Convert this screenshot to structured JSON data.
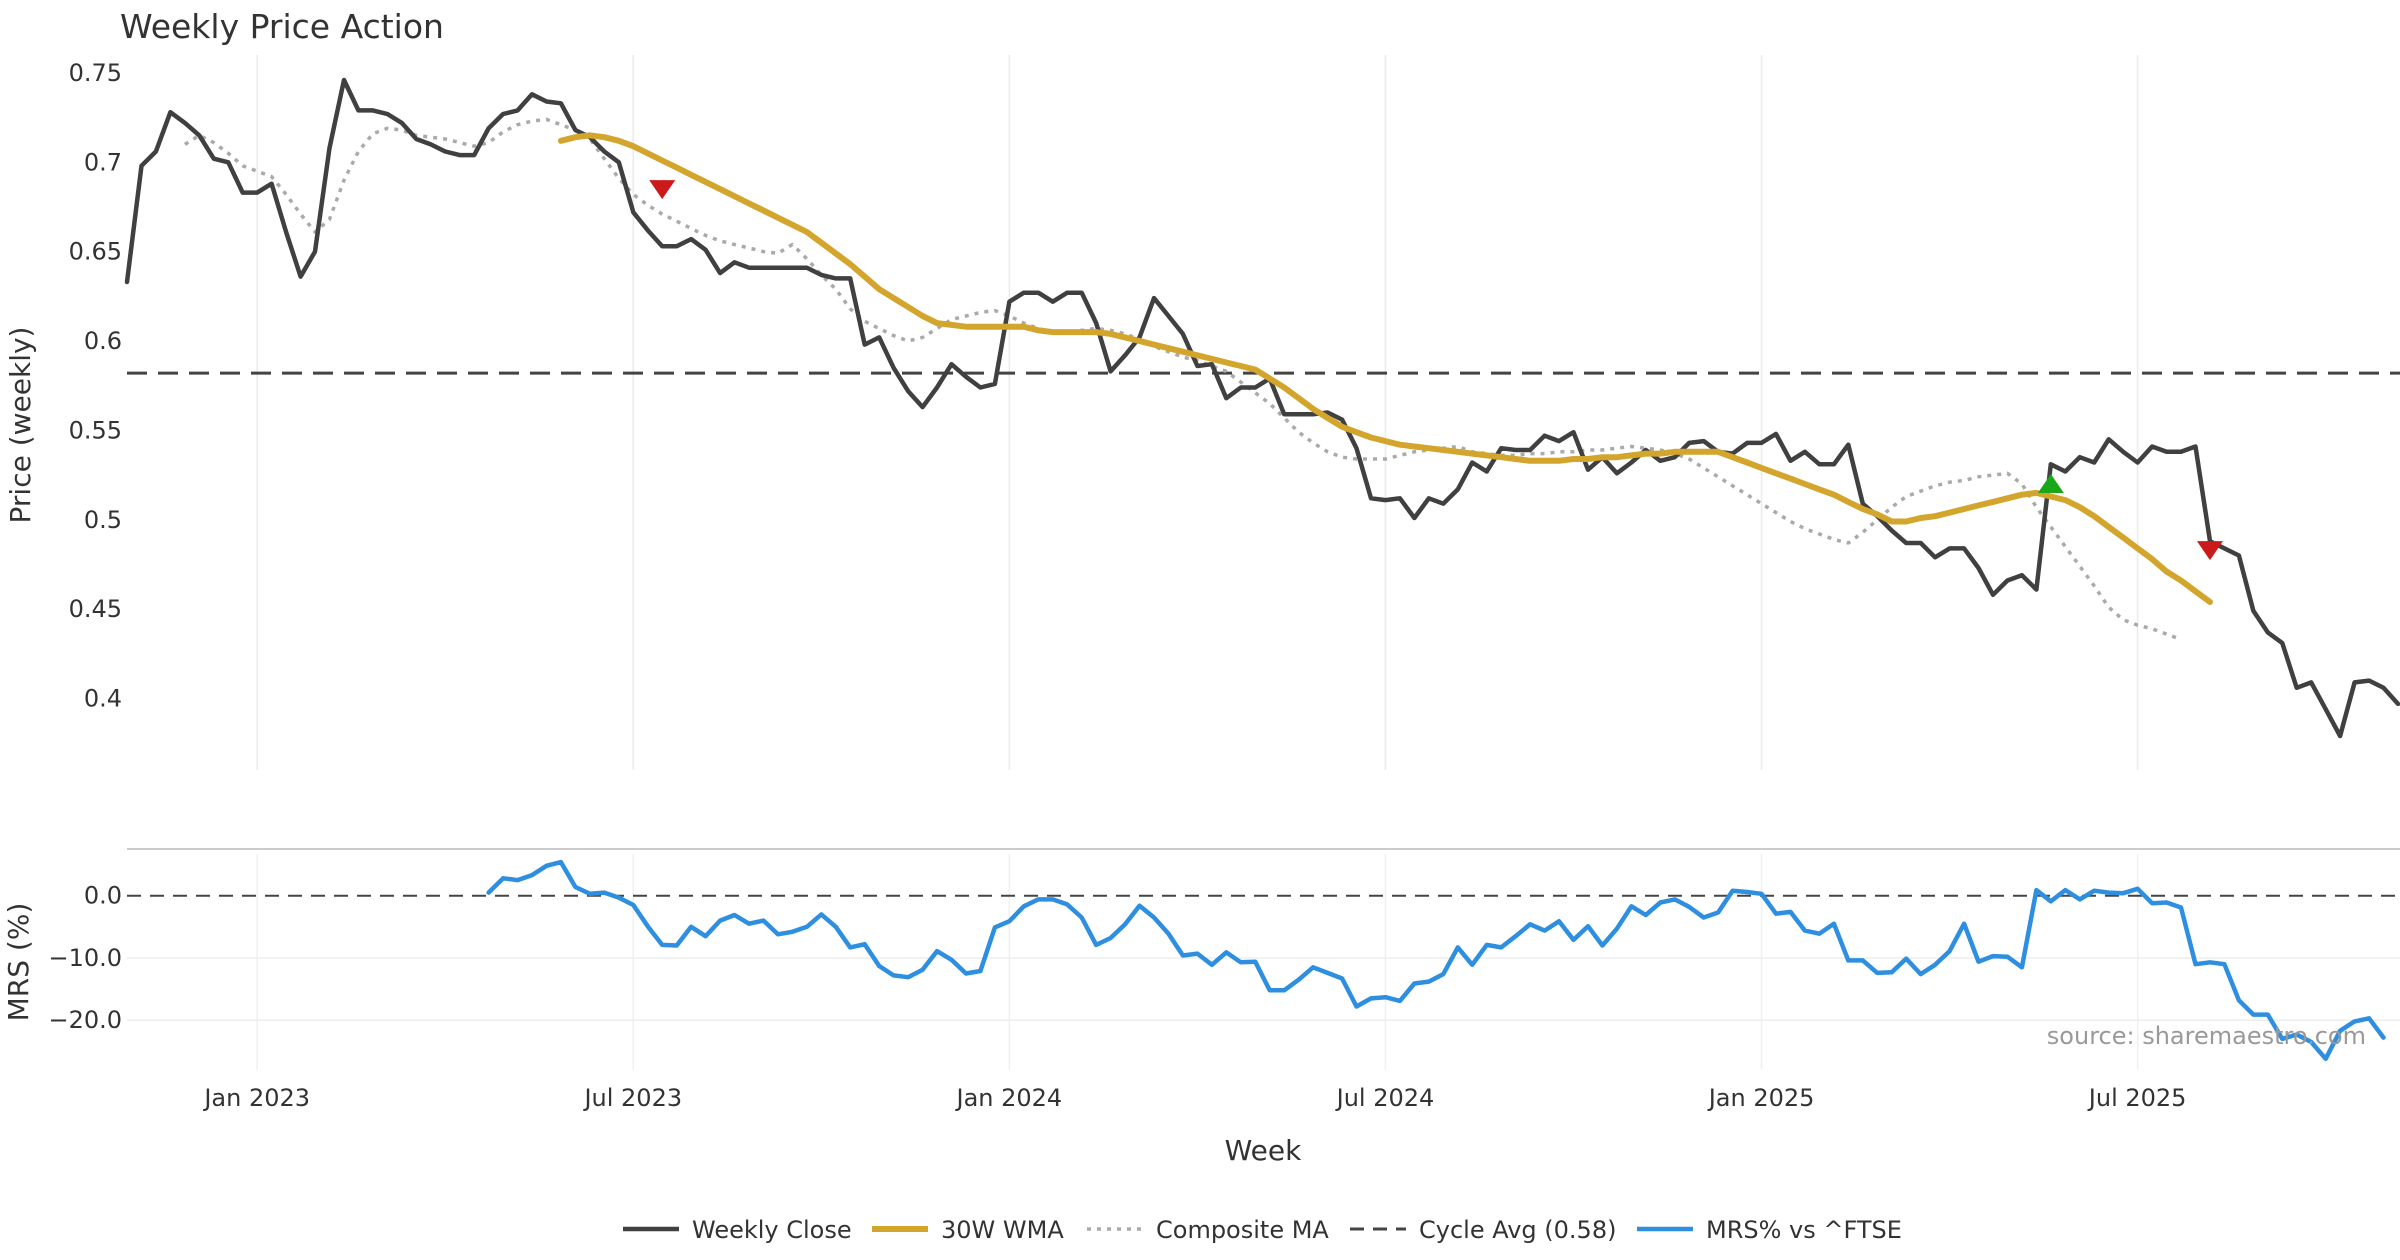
{
  "chart_data": {
    "type": "line",
    "title": "Weekly Price Action",
    "xlabel": "Week",
    "source": "source: sharemaestro.com",
    "x_ticks": [
      "Jan 2023",
      "Jul 2023",
      "Jan 2024",
      "Jul 2024",
      "Jan 2025",
      "Jul 2025"
    ],
    "x_ticks_weeks": [
      4,
      30,
      56,
      82,
      108,
      134
    ],
    "panels": {
      "price": {
        "ylabel": "Price (weekly)",
        "ylim": [
          0.36,
          0.76
        ],
        "y_ticks": [
          0.75,
          0.7,
          0.65,
          0.6,
          0.55,
          0.5,
          0.45,
          0.4
        ],
        "y_tick_labels": [
          "0.75",
          "0.7",
          "0.65",
          "0.6",
          "0.55",
          "0.5",
          "0.45",
          "0.4"
        ]
      },
      "mrs": {
        "ylabel": "MRS (%)",
        "ylim": [
          -28,
          7.5
        ],
        "y_ticks": [
          0,
          -10,
          -20
        ],
        "y_tick_labels": [
          "0.0",
          "−10.0",
          "−20.0"
        ]
      }
    },
    "legend": {
      "position": "bottom-center",
      "entries": [
        "Weekly Close",
        "30W WMA",
        "Composite MA",
        "Cycle Avg (0.58)",
        "MRS% vs ^FTSE"
      ]
    },
    "colors": {
      "weekly_close": "#404040",
      "wma": "#D4A52C",
      "composite": "#AAAAAA",
      "cycle": "#444444",
      "mrs": "#2E8FE0",
      "sell_marker": "#CC1A1A",
      "buy_marker": "#1AA81A"
    },
    "cycle_avg": 0.582,
    "x_start_week": -5,
    "series": [
      {
        "name": "Weekly Close",
        "x_start": -5,
        "values": [
          0.633,
          0.698,
          0.706,
          0.728,
          0.722,
          0.715,
          0.702,
          0.7,
          0.683,
          0.683,
          0.688,
          0.661,
          0.636,
          0.65,
          0.708,
          0.746,
          0.729,
          0.729,
          0.727,
          0.722,
          0.713,
          0.71,
          0.706,
          0.704,
          0.704,
          0.719,
          0.727,
          0.729,
          0.738,
          0.734,
          0.733,
          0.718,
          0.714,
          0.706,
          0.7,
          0.672,
          0.662,
          0.653,
          0.653,
          0.657,
          0.651,
          0.638,
          0.644,
          0.641,
          0.641,
          0.641,
          0.641,
          0.641,
          0.637,
          0.635,
          0.635,
          0.598,
          0.602,
          0.585,
          0.572,
          0.563,
          0.574,
          0.587,
          0.58,
          0.574,
          0.576,
          0.622,
          0.627,
          0.627,
          0.622,
          0.627,
          0.627,
          0.61,
          0.583,
          0.592,
          0.602,
          0.624,
          0.614,
          0.604,
          0.586,
          0.587,
          0.568,
          0.574,
          0.574,
          0.579,
          0.559,
          0.559,
          0.559,
          0.56,
          0.556,
          0.54,
          0.512,
          0.511,
          0.512,
          0.501,
          0.512,
          0.509,
          0.517,
          0.532,
          0.527,
          0.54,
          0.539,
          0.539,
          0.547,
          0.544,
          0.549,
          0.528,
          0.535,
          0.526,
          0.532,
          0.539,
          0.533,
          0.535,
          0.543,
          0.544,
          0.538,
          0.537,
          0.543,
          0.543,
          0.548,
          0.533,
          0.538,
          0.531,
          0.531,
          0.542,
          0.509,
          0.502,
          0.494,
          0.487,
          0.487,
          0.479,
          0.484,
          0.484,
          0.473,
          0.458,
          0.466,
          0.469,
          0.461,
          0.531,
          0.527,
          0.535,
          0.532,
          0.545,
          0.538,
          0.532,
          0.541,
          0.538,
          0.538,
          0.541,
          0.488,
          0.484,
          0.48,
          0.449,
          0.437,
          0.431,
          0.406,
          0.409,
          0.394,
          0.379,
          0.409,
          0.41,
          0.406,
          0.397
        ]
      },
      {
        "name": "30W WMA",
        "x_start": 25,
        "values": [
          0.712,
          0.714,
          0.715,
          0.714,
          0.712,
          0.709,
          0.705,
          0.701,
          0.697,
          0.693,
          0.689,
          0.685,
          0.681,
          0.677,
          0.673,
          0.669,
          0.665,
          0.661,
          0.655,
          0.649,
          0.643,
          0.636,
          0.629,
          0.624,
          0.619,
          0.614,
          0.61,
          0.609,
          0.608,
          0.608,
          0.608,
          0.608,
          0.608,
          0.606,
          0.605,
          0.605,
          0.605,
          0.605,
          0.604,
          0.602,
          0.6,
          0.598,
          0.596,
          0.594,
          0.592,
          0.59,
          0.588,
          0.586,
          0.584,
          0.579,
          0.574,
          0.568,
          0.562,
          0.557,
          0.552,
          0.549,
          0.546,
          0.544,
          0.542,
          0.541,
          0.54,
          0.539,
          0.538,
          0.537,
          0.536,
          0.535,
          0.534,
          0.533,
          0.533,
          0.533,
          0.534,
          0.534,
          0.535,
          0.535,
          0.536,
          0.537,
          0.537,
          0.538,
          0.538,
          0.538,
          0.538,
          0.535,
          0.532,
          0.529,
          0.526,
          0.523,
          0.52,
          0.517,
          0.514,
          0.51,
          0.506,
          0.503,
          0.499,
          0.499,
          0.501,
          0.502,
          0.504,
          0.506,
          0.508,
          0.51,
          0.512,
          0.514,
          0.515,
          0.513,
          0.511,
          0.507,
          0.502,
          0.496,
          0.49,
          0.484,
          0.478,
          0.471,
          0.466,
          0.46,
          0.454
        ]
      },
      {
        "name": "Composite MA",
        "x_start": -1,
        "values": [
          0.71,
          0.715,
          0.711,
          0.705,
          0.698,
          0.695,
          0.692,
          0.682,
          0.671,
          0.661,
          0.668,
          0.69,
          0.706,
          0.716,
          0.719,
          0.718,
          0.715,
          0.714,
          0.713,
          0.711,
          0.709,
          0.711,
          0.717,
          0.721,
          0.723,
          0.724,
          0.721,
          0.718,
          0.713,
          0.702,
          0.691,
          0.682,
          0.676,
          0.671,
          0.667,
          0.663,
          0.659,
          0.656,
          0.654,
          0.652,
          0.65,
          0.649,
          0.654,
          0.646,
          0.637,
          0.629,
          0.618,
          0.611,
          0.607,
          0.603,
          0.6,
          0.602,
          0.607,
          0.612,
          0.614,
          0.616,
          0.617,
          0.614,
          0.61,
          0.607,
          0.605,
          0.605,
          0.606,
          0.607,
          0.606,
          0.604,
          0.601,
          0.597,
          0.594,
          0.591,
          0.589,
          0.586,
          0.583,
          0.577,
          0.571,
          0.565,
          0.557,
          0.549,
          0.543,
          0.538,
          0.535,
          0.534,
          0.534,
          0.534,
          0.536,
          0.538,
          0.539,
          0.54,
          0.541,
          0.538,
          0.537,
          0.536,
          0.536,
          0.537,
          0.537,
          0.538,
          0.538,
          0.539,
          0.539,
          0.54,
          0.541,
          0.54,
          0.539,
          0.537,
          0.534,
          0.529,
          0.524,
          0.519,
          0.514,
          0.509,
          0.504,
          0.499,
          0.495,
          0.492,
          0.489,
          0.487,
          0.493,
          0.5,
          0.507,
          0.513,
          0.516,
          0.519,
          0.521,
          0.522,
          0.524,
          0.525,
          0.526,
          0.52,
          0.507,
          0.496,
          0.485,
          0.474,
          0.463,
          0.451,
          0.444,
          0.441,
          0.439,
          0.436,
          0.433
        ]
      },
      {
        "name": "MRS% vs ^FTSE",
        "x_start": 20,
        "values": [
          0.5,
          2.8,
          2.5,
          3.3,
          4.8,
          5.4,
          1.4,
          0.3,
          0.5,
          -0.3,
          -1.5,
          -4.9,
          -7.9,
          -8.0,
          -5.0,
          -6.5,
          -4.0,
          -3.1,
          -4.5,
          -4.0,
          -6.2,
          -5.8,
          -5.0,
          -3.0,
          -5.0,
          -8.3,
          -7.8,
          -11.3,
          -12.8,
          -13.1,
          -11.9,
          -8.9,
          -10.3,
          -12.5,
          -12.1,
          -5.1,
          -4.1,
          -1.7,
          -0.6,
          -0.6,
          -1.4,
          -3.5,
          -7.9,
          -6.8,
          -4.6,
          -1.6,
          -3.5,
          -6.1,
          -9.6,
          -9.3,
          -11.1,
          -9.1,
          -10.7,
          -10.6,
          -15.2,
          -15.2,
          -13.5,
          -11.5,
          -12.4,
          -13.3,
          -17.8,
          -16.5,
          -16.3,
          -16.9,
          -14.1,
          -13.8,
          -12.6,
          -8.3,
          -11.1,
          -7.9,
          -8.3,
          -6.5,
          -4.6,
          -5.6,
          -4.1,
          -7.1,
          -4.9,
          -8.0,
          -5.3,
          -1.7,
          -3.1,
          -1.1,
          -0.6,
          -1.8,
          -3.5,
          -2.7,
          0.8,
          0.6,
          0.3,
          -2.9,
          -2.6,
          -5.6,
          -6.1,
          -4.5,
          -10.4,
          -10.4,
          -12.4,
          -12.3,
          -10.1,
          -12.6,
          -11.1,
          -8.9,
          -4.5,
          -10.6,
          -9.7,
          -9.8,
          -11.5,
          0.9,
          -0.9,
          0.9,
          -0.6,
          0.8,
          0.5,
          0.4,
          1.1,
          -1.2,
          -1.1,
          -1.9,
          -11.0,
          -10.7,
          -11.0,
          -16.8,
          -19.1,
          -19.1,
          -23.0,
          -22.3,
          -23.5,
          -26.2,
          -21.7,
          -20.2,
          -19.7,
          -22.8
        ]
      }
    ],
    "markers": [
      {
        "type": "sell",
        "shape": "triangle-down",
        "week": 32,
        "price": 0.685
      },
      {
        "type": "buy",
        "shape": "triangle-up",
        "week": 128,
        "price": 0.52
      },
      {
        "type": "sell",
        "shape": "triangle-down",
        "week": 139,
        "price": 0.483
      }
    ]
  }
}
